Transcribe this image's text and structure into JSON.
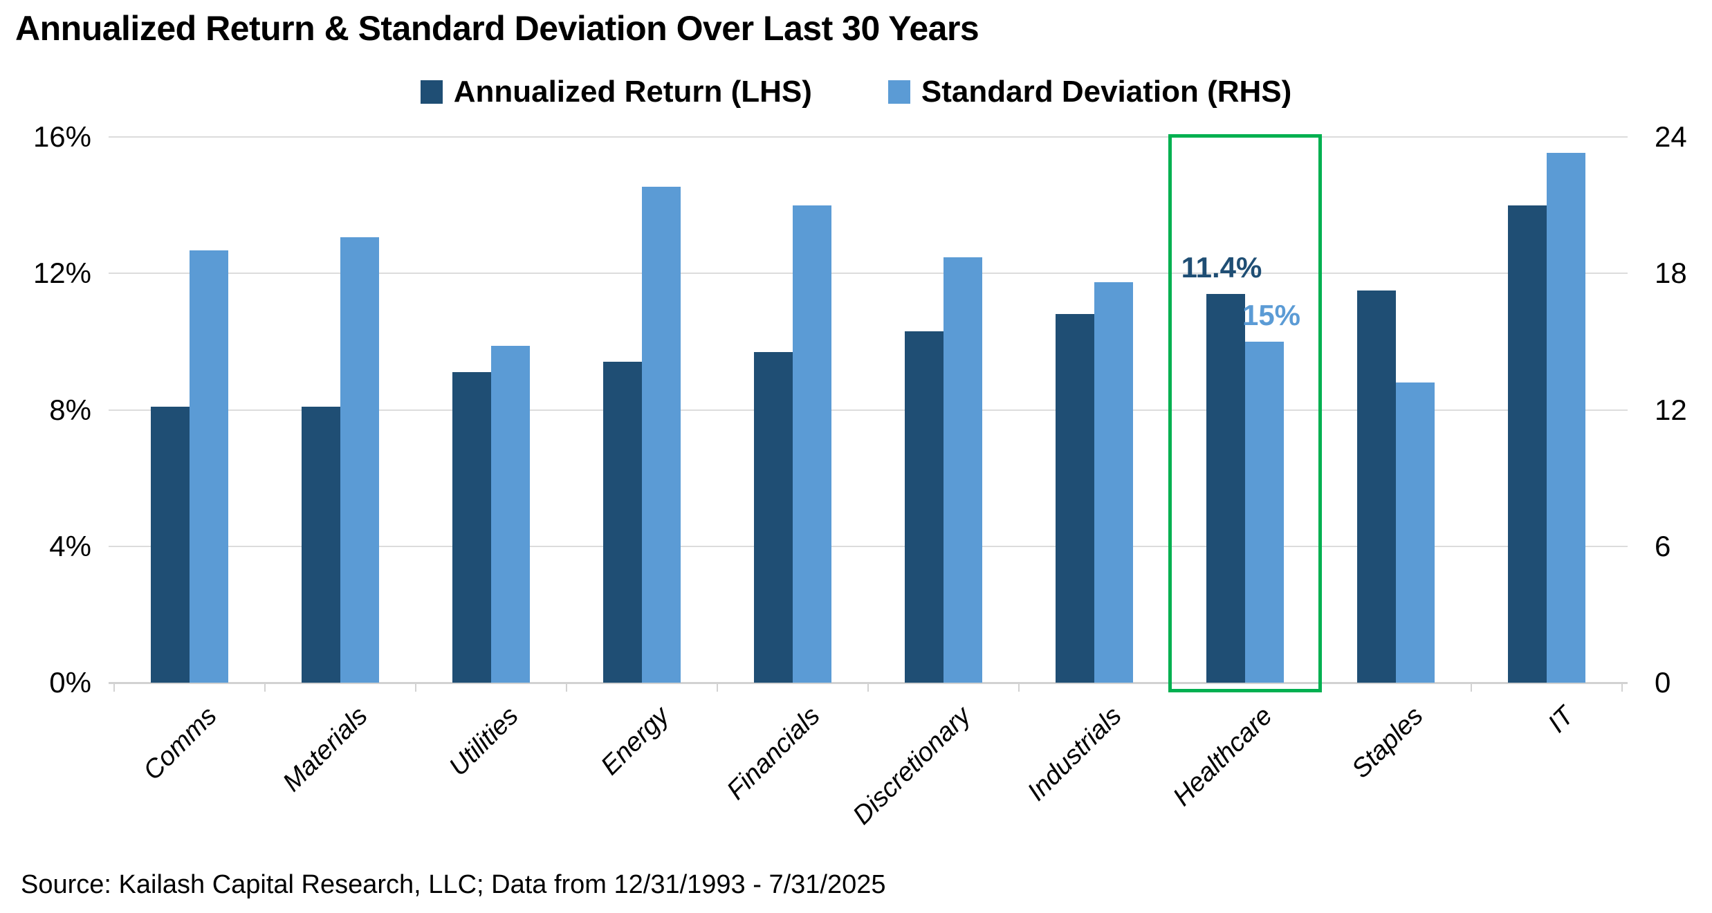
{
  "title": "Annualized Return & Standard Deviation Over Last 30 Years",
  "source_note": "Source: Kailash Capital Research, LLC; Data from 12/31/1993 - 7/31/2025",
  "colors": {
    "return_bar": "#1F4E74",
    "sd_bar": "#5B9BD5",
    "highlight_box": "#00B050",
    "gridline": "#DCDCDC",
    "axis_text": "#000000"
  },
  "legend": {
    "items": [
      {
        "label": "Annualized Return (LHS)",
        "color": "#1F4E74"
      },
      {
        "label": "Standard Deviation (RHS)",
        "color": "#5B9BD5"
      }
    ]
  },
  "chart_data": {
    "type": "bar",
    "title": "Annualized Return & Standard Deviation Over Last 30 Years",
    "categories": [
      "Comms",
      "Materials",
      "Utilities",
      "Energy",
      "Financials",
      "Discretionary",
      "Industrials",
      "Healthcare",
      "Staples",
      "IT"
    ],
    "series": [
      {
        "name": "Annualized Return (LHS)",
        "axis": "left",
        "color": "#1F4E74",
        "unit": "%",
        "values": [
          8.1,
          8.1,
          9.1,
          9.4,
          9.7,
          10.3,
          10.8,
          11.4,
          11.5,
          14.0
        ]
      },
      {
        "name": "Standard Deviation (RHS)",
        "axis": "right",
        "color": "#5B9BD5",
        "unit": "",
        "values": [
          19.0,
          19.6,
          14.8,
          21.8,
          21.0,
          18.7,
          17.6,
          15.0,
          13.2,
          23.3
        ]
      }
    ],
    "left_axis": {
      "min": 0,
      "max": 16,
      "tick_labels_top_to_bottom": [
        "16%",
        "12%",
        "8%",
        "4%",
        "0%"
      ]
    },
    "right_axis": {
      "min": 0,
      "max": 24,
      "tick_labels_top_to_bottom": [
        "24",
        "18",
        "12",
        "6",
        "0"
      ]
    },
    "grid": true,
    "legend_position": "top",
    "highlight": {
      "category": "Healthcare",
      "box_color": "#00B050",
      "return_label": {
        "text": "11.4%",
        "color": "#1F4E74"
      },
      "sd_label": {
        "text": "15%",
        "color": "#5B9BD5"
      }
    }
  }
}
